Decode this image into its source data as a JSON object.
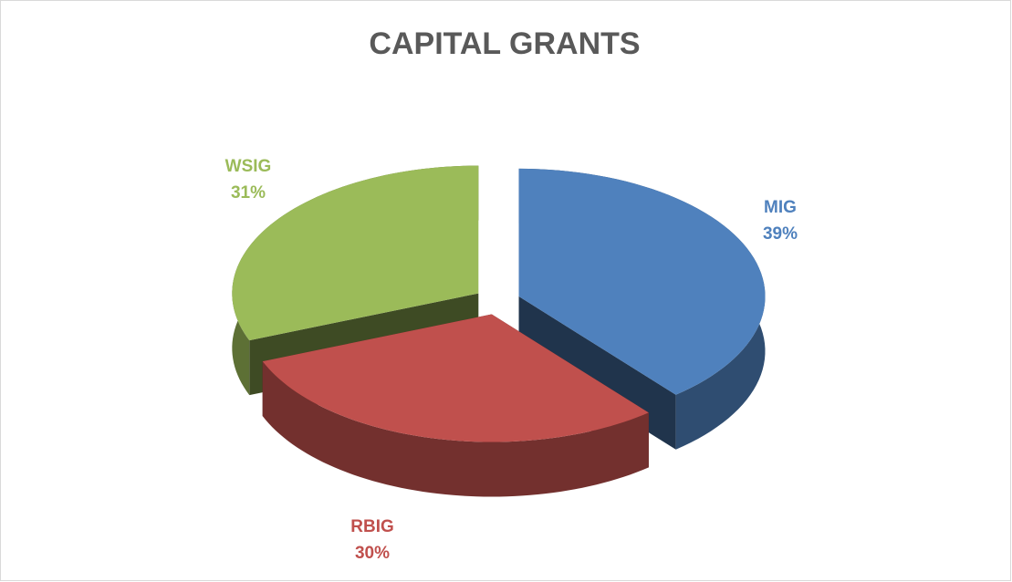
{
  "chart_data": {
    "type": "pie",
    "title": "CAPITAL GRANTS",
    "categories": [
      "MIG",
      "RBIG",
      "WSIG"
    ],
    "values": [
      39,
      30,
      31
    ],
    "value_labels": [
      "39%",
      "30%",
      "31%"
    ],
    "colors": [
      "#4f81bd",
      "#c0504d",
      "#9bbb59"
    ]
  }
}
